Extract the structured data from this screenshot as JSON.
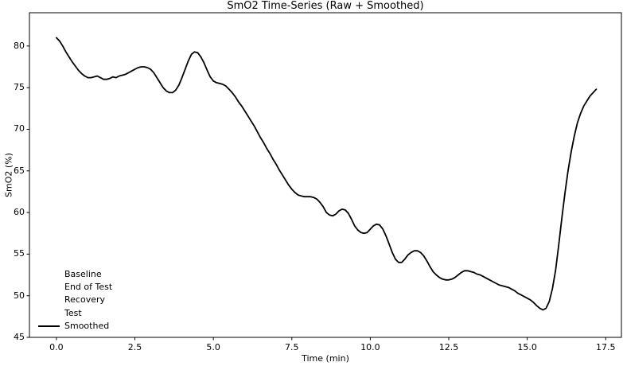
{
  "chart_data": {
    "type": "line",
    "title": "SmO2 Time-Series (Raw + Smoothed)",
    "xlabel": "Time (min)",
    "ylabel": "SmO2 (%)",
    "xlim": [
      -0.86,
      18.0
    ],
    "ylim": [
      45,
      84
    ],
    "xticks": [
      0.0,
      2.5,
      5.0,
      7.5,
      10.0,
      12.5,
      15.0,
      17.5
    ],
    "xtick_labels": [
      "0.0",
      "2.5",
      "5.0",
      "7.5",
      "10.0",
      "12.5",
      "15.0",
      "17.5"
    ],
    "yticks": [
      45,
      50,
      55,
      60,
      65,
      70,
      75,
      80
    ],
    "ytick_labels": [
      "45",
      "50",
      "55",
      "60",
      "65",
      "70",
      "75",
      "80"
    ],
    "grid": false,
    "axis_color": "#000000",
    "background": "#ffffff",
    "legend": {
      "position": "lower-left",
      "frame": false,
      "entries": [
        {
          "label": "Baseline",
          "handle": "blank",
          "color": "none"
        },
        {
          "label": "End of Test",
          "handle": "blank",
          "color": "none"
        },
        {
          "label": "Recovery",
          "handle": "blank",
          "color": "none"
        },
        {
          "label": "Test",
          "handle": "blank",
          "color": "none"
        },
        {
          "label": "Smoothed",
          "handle": "line",
          "color": "#000000"
        }
      ]
    },
    "series": [
      {
        "name": "Smoothed",
        "color": "#000000",
        "line_width": 1.8,
        "x_unit": "min",
        "x_start": 0.0,
        "x_step": 0.1,
        "x_end": 17.2,
        "y": [
          81.0,
          80.6,
          80.0,
          79.3,
          78.7,
          78.1,
          77.6,
          77.1,
          76.7,
          76.4,
          76.2,
          76.2,
          76.3,
          76.4,
          76.2,
          76.0,
          76.0,
          76.1,
          76.3,
          76.2,
          76.4,
          76.5,
          76.6,
          76.8,
          77.0,
          77.2,
          77.4,
          77.5,
          77.5,
          77.4,
          77.2,
          76.8,
          76.2,
          75.6,
          75.0,
          74.6,
          74.4,
          74.4,
          74.7,
          75.3,
          76.2,
          77.2,
          78.2,
          79.0,
          79.3,
          79.2,
          78.7,
          78.0,
          77.1,
          76.3,
          75.8,
          75.6,
          75.5,
          75.4,
          75.2,
          74.8,
          74.4,
          73.9,
          73.3,
          72.8,
          72.2,
          71.6,
          71.0,
          70.4,
          69.7,
          69.0,
          68.4,
          67.7,
          67.1,
          66.4,
          65.8,
          65.1,
          64.5,
          63.9,
          63.3,
          62.8,
          62.4,
          62.1,
          62.0,
          61.9,
          61.9,
          61.9,
          61.8,
          61.6,
          61.2,
          60.7,
          60.0,
          59.7,
          59.6,
          59.8,
          60.2,
          60.4,
          60.3,
          59.9,
          59.2,
          58.4,
          57.9,
          57.6,
          57.5,
          57.6,
          58.0,
          58.4,
          58.6,
          58.5,
          58.0,
          57.2,
          56.2,
          55.2,
          54.4,
          54.0,
          54.0,
          54.4,
          54.9,
          55.2,
          55.4,
          55.4,
          55.2,
          54.8,
          54.2,
          53.5,
          52.9,
          52.5,
          52.2,
          52.0,
          51.9,
          51.9,
          52.0,
          52.2,
          52.5,
          52.8,
          53.0,
          53.0,
          52.9,
          52.8,
          52.6,
          52.5,
          52.3,
          52.1,
          51.9,
          51.7,
          51.5,
          51.3,
          51.2,
          51.1,
          51.0,
          50.8,
          50.6,
          50.3,
          50.1,
          49.9,
          49.7,
          49.5,
          49.2,
          48.8,
          48.5,
          48.3,
          48.5,
          49.3,
          50.8,
          53.0,
          56.0,
          59.2,
          62.3,
          65.0,
          67.3,
          69.2,
          70.8,
          71.9,
          72.8,
          73.4,
          74.0,
          74.4,
          74.8
        ]
      }
    ]
  }
}
